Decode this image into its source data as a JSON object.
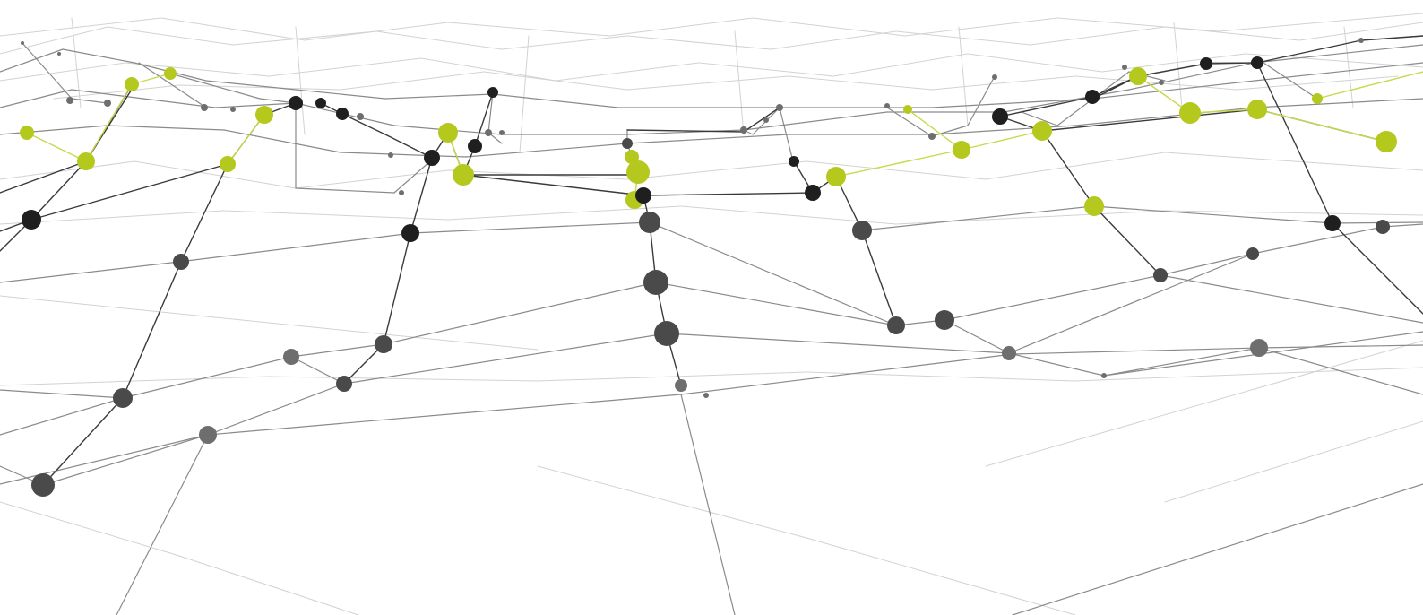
{
  "image": {
    "subject": "network-graph-illustration",
    "colors": {
      "background": "#ffffff",
      "accent_node": "#b5c81e",
      "accent_link": "#c9d84a",
      "dark_node": "#1f1f1f",
      "mid_node": "#4a4a4a",
      "light_node": "#6e6e6e",
      "dark_link": "#3a3a3a",
      "mid_link": "#8a8a8a",
      "faint_link": "#d2d2d2"
    }
  }
}
